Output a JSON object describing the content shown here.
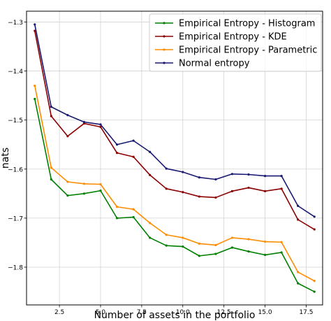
{
  "chart_data": {
    "type": "line",
    "xlabel": "Number of assets in the portfolio",
    "ylabel": "nats",
    "xlim": [
      0.5,
      18.5
    ],
    "ylim": [
      -1.877,
      -1.278
    ],
    "grid": true,
    "legend_position": "top-right",
    "xticks": [
      2.5,
      5.0,
      7.5,
      10.0,
      12.5,
      15.0,
      17.5
    ],
    "xtick_labels": [
      "2.5",
      "5.0",
      "7.5",
      "10.0",
      "12.5",
      "15.0",
      "17.5"
    ],
    "yticks": [
      -1.3,
      -1.4,
      -1.5,
      -1.6,
      -1.7,
      -1.8
    ],
    "ytick_labels": [
      "−1.3",
      "−1.4",
      "−1.5",
      "−1.6",
      "−1.7",
      "−1.8"
    ],
    "x": [
      1,
      2,
      3,
      4,
      5,
      6,
      7,
      8,
      9,
      10,
      11,
      12,
      13,
      14,
      15,
      16,
      17,
      18
    ],
    "series": [
      {
        "name": "Empirical Entropy - Histogram",
        "color": "#008000",
        "values": [
          -1.457,
          -1.621,
          -1.654,
          -1.65,
          -1.644,
          -1.7,
          -1.698,
          -1.74,
          -1.756,
          -1.758,
          -1.777,
          -1.773,
          -1.76,
          -1.768,
          -1.775,
          -1.77,
          -1.833,
          -1.85
        ]
      },
      {
        "name": "Empirical Entropy - KDE",
        "color": "#8b0000",
        "values": [
          -1.318,
          -1.492,
          -1.533,
          -1.507,
          -1.514,
          -1.567,
          -1.575,
          -1.612,
          -1.64,
          -1.647,
          -1.656,
          -1.658,
          -1.645,
          -1.638,
          -1.645,
          -1.64,
          -1.703,
          -1.723
        ]
      },
      {
        "name": "Empirical Entropy - Parametric",
        "color": "#ff8c00",
        "values": [
          -1.43,
          -1.597,
          -1.626,
          -1.63,
          -1.631,
          -1.677,
          -1.682,
          -1.71,
          -1.734,
          -1.74,
          -1.752,
          -1.755,
          -1.74,
          -1.743,
          -1.748,
          -1.749,
          -1.81,
          -1.828
        ]
      },
      {
        "name": "Normal entropy",
        "color": "#191970",
        "values": [
          -1.305,
          -1.473,
          -1.49,
          -1.504,
          -1.509,
          -1.55,
          -1.542,
          -1.565,
          -1.599,
          -1.606,
          -1.617,
          -1.621,
          -1.61,
          -1.611,
          -1.614,
          -1.614,
          -1.675,
          -1.697
        ]
      }
    ]
  }
}
